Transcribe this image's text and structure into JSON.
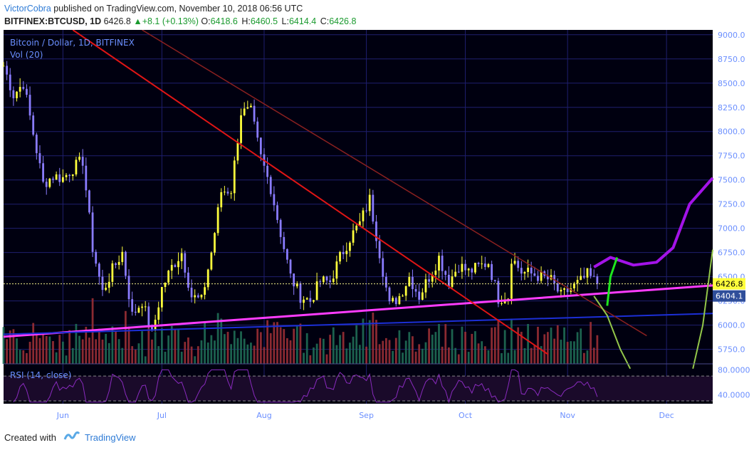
{
  "header": {
    "author": "VictorCobra",
    "published": "published on TradingView.com, November 10, 2018 06:56 UTC",
    "symbol": "BITFINEX:BTCUSD, 1D",
    "last": "6426.8",
    "change": "+8.1 (+0.13%)",
    "o_label": "O:",
    "o": "6418.6",
    "h_label": "H:",
    "h": "6460.5",
    "l_label": "L:",
    "l": "6414.4",
    "c_label": "C:",
    "c": "6426.8"
  },
  "footer": {
    "created": "Created with",
    "brand": "TradingView"
  },
  "colors": {
    "background": "#000010",
    "grid": "#1f1f6e",
    "candle_up": "#ffff3c",
    "candle_down": "#8a7cff",
    "vol_up": "#1f6d55",
    "vol_down": "#9a2f35",
    "magenta": "#ff3cff",
    "blue_line": "#1c2fd6",
    "red_line": "#e01515",
    "dark_red_line": "#8a2020",
    "purple_projection": "#a313e8",
    "green_projection": "#1ee61e",
    "olive_curve": "#93c74a",
    "axis_text": "#6b8fff",
    "rsi_line": "#8a2bbf"
  },
  "chart_data": [
    {
      "type": "candlestick",
      "title": "Bitcoin / Dollar, 1D, BITFINEX",
      "volume_label": "Vol (20)",
      "x_tick_labels": [
        "Jun",
        "Jul",
        "Aug",
        "Sep",
        "Oct",
        "Nov",
        "Dec"
      ],
      "x_tick_dates": [
        "2018-06-01",
        "2018-07-01",
        "2018-08-01",
        "2018-09-01",
        "2018-10-01",
        "2018-11-01",
        "2018-12-01"
      ],
      "x_range": [
        "2018-05-14",
        "2018-12-15"
      ],
      "y_ticks": [
        "9000.0",
        "8750.0",
        "8500.0",
        "8250.0",
        "8000.0",
        "7750.0",
        "7500.0",
        "7250.0",
        "7000.0",
        "6750.0",
        "6500.0",
        "6250.0",
        "6000.0",
        "5750.0"
      ],
      "ylim": [
        5600,
        9050
      ],
      "grid": true,
      "last_price_label": "6426.8",
      "last_price": 6426.8,
      "marker_label": "6404.1",
      "marker_price": 6404.1,
      "closes": [
        {
          "date": "2018-05-14",
          "close": 8680
        },
        {
          "date": "2018-05-17",
          "close": 8380
        },
        {
          "date": "2018-05-20",
          "close": 8500
        },
        {
          "date": "2018-05-23",
          "close": 7980
        },
        {
          "date": "2018-05-26",
          "close": 7460
        },
        {
          "date": "2018-05-29",
          "close": 7540
        },
        {
          "date": "2018-06-01",
          "close": 7520
        },
        {
          "date": "2018-06-04",
          "close": 7620
        },
        {
          "date": "2018-06-07",
          "close": 7700
        },
        {
          "date": "2018-06-10",
          "close": 6800
        },
        {
          "date": "2018-06-13",
          "close": 6340
        },
        {
          "date": "2018-06-16",
          "close": 6570
        },
        {
          "date": "2018-06-19",
          "close": 6750
        },
        {
          "date": "2018-06-22",
          "close": 6100
        },
        {
          "date": "2018-06-25",
          "close": 6250
        },
        {
          "date": "2018-06-28",
          "close": 5900
        },
        {
          "date": "2018-07-01",
          "close": 6380
        },
        {
          "date": "2018-07-04",
          "close": 6600
        },
        {
          "date": "2018-07-07",
          "close": 6750
        },
        {
          "date": "2018-07-10",
          "close": 6300
        },
        {
          "date": "2018-07-13",
          "close": 6250
        },
        {
          "date": "2018-07-16",
          "close": 6750
        },
        {
          "date": "2018-07-19",
          "close": 7380
        },
        {
          "date": "2018-07-22",
          "close": 7400
        },
        {
          "date": "2018-07-25",
          "close": 8200
        },
        {
          "date": "2018-07-28",
          "close": 8200
        },
        {
          "date": "2018-07-31",
          "close": 7730
        },
        {
          "date": "2018-08-03",
          "close": 7420
        },
        {
          "date": "2018-08-06",
          "close": 6950
        },
        {
          "date": "2018-08-09",
          "close": 6500
        },
        {
          "date": "2018-08-12",
          "close": 6300
        },
        {
          "date": "2018-08-15",
          "close": 6250
        },
        {
          "date": "2018-08-18",
          "close": 6450
        },
        {
          "date": "2018-08-21",
          "close": 6450
        },
        {
          "date": "2018-08-24",
          "close": 6700
        },
        {
          "date": "2018-08-27",
          "close": 6900
        },
        {
          "date": "2018-08-30",
          "close": 7050
        },
        {
          "date": "2018-09-02",
          "close": 7300
        },
        {
          "date": "2018-09-05",
          "close": 6750
        },
        {
          "date": "2018-09-08",
          "close": 6200
        },
        {
          "date": "2018-09-11",
          "close": 6300
        },
        {
          "date": "2018-09-14",
          "close": 6500
        },
        {
          "date": "2018-09-17",
          "close": 6300
        },
        {
          "date": "2018-09-20",
          "close": 6500
        },
        {
          "date": "2018-09-23",
          "close": 6700
        },
        {
          "date": "2018-09-26",
          "close": 6450
        },
        {
          "date": "2018-09-29",
          "close": 6620
        },
        {
          "date": "2018-10-02",
          "close": 6550
        },
        {
          "date": "2018-10-05",
          "close": 6600
        },
        {
          "date": "2018-10-08",
          "close": 6650
        },
        {
          "date": "2018-10-11",
          "close": 6280
        },
        {
          "date": "2018-10-14",
          "close": 6300
        },
        {
          "date": "2018-10-15",
          "close": 6700
        },
        {
          "date": "2018-10-18",
          "close": 6550
        },
        {
          "date": "2018-10-21",
          "close": 6530
        },
        {
          "date": "2018-10-24",
          "close": 6500
        },
        {
          "date": "2018-10-27",
          "close": 6460
        },
        {
          "date": "2018-10-30",
          "close": 6300
        },
        {
          "date": "2018-11-02",
          "close": 6380
        },
        {
          "date": "2018-11-05",
          "close": 6450
        },
        {
          "date": "2018-11-07",
          "close": 6520
        },
        {
          "date": "2018-11-10",
          "close": 6426.8
        }
      ],
      "trendlines": [
        {
          "name": "magenta support",
          "points": [
            [
              "2018-05-14",
              5880
            ],
            [
              "2018-12-15",
              6410
            ]
          ]
        },
        {
          "name": "blue support",
          "points": [
            [
              "2018-05-14",
              5905
            ],
            [
              "2018-12-15",
              6120
            ]
          ]
        },
        {
          "name": "red resistance",
          "points": [
            [
              "2018-06-04",
              9050
            ],
            [
              "2018-10-26",
              5700
            ]
          ]
        },
        {
          "name": "dark red resistance",
          "points": [
            [
              "2018-06-25",
              9050
            ],
            [
              "2018-11-25",
              5890
            ]
          ]
        }
      ],
      "projections": [
        {
          "name": "purple",
          "points": [
            [
              "2018-11-09",
              6600
            ],
            [
              "2018-11-14",
              6700
            ],
            [
              "2018-11-21",
              6620
            ],
            [
              "2018-11-28",
              6650
            ],
            [
              "2018-12-03",
              6800
            ],
            [
              "2018-12-08",
              7250
            ],
            [
              "2018-12-15",
              7520
            ]
          ]
        },
        {
          "name": "green",
          "points": [
            [
              "2018-11-13",
              6200
            ],
            [
              "2018-11-14",
              6500
            ],
            [
              "2018-11-16",
              6700
            ]
          ]
        },
        {
          "name": "olive curve down",
          "points": [
            [
              "2018-11-09",
              6300
            ],
            [
              "2018-11-13",
              6100
            ],
            [
              "2018-11-17",
              5750
            ],
            [
              "2018-11-20",
              5550
            ]
          ]
        },
        {
          "name": "olive curve up",
          "points": [
            [
              "2018-12-09",
              5550
            ],
            [
              "2018-12-12",
              6000
            ],
            [
              "2018-12-15",
              6780
            ]
          ]
        }
      ]
    },
    {
      "type": "line",
      "title": "RSI (14, close)",
      "y_ticks": [
        "80.0000",
        "40.0000"
      ],
      "ylim": [
        30,
        85
      ],
      "bands": [
        70,
        30
      ],
      "last_value": 44
    }
  ]
}
